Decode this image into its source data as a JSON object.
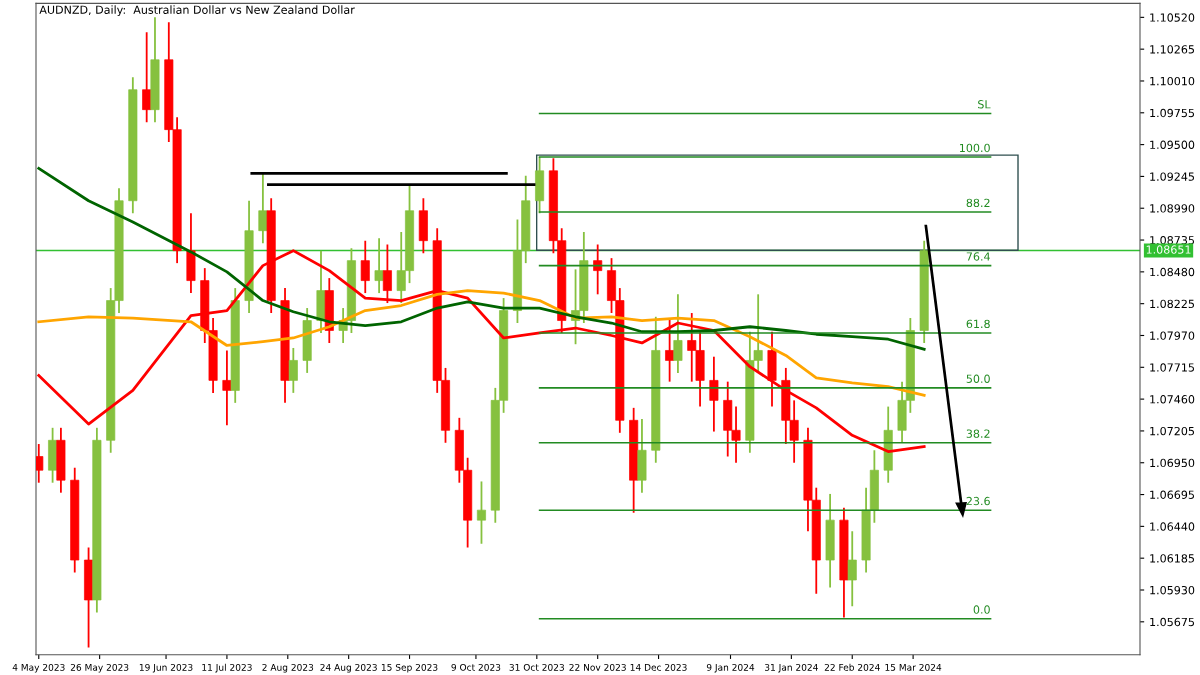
{
  "chart_data": {
    "type": "candlestick",
    "title": "AUDNZD, Daily:  Australian Dollar vs New Zealand Dollar",
    "x": [
      "2023-05-04",
      "2023-05-09",
      "2023-05-12",
      "2023-05-17",
      "2023-05-22",
      "2023-05-25",
      "2023-05-30",
      "2023-06-02",
      "2023-06-07",
      "2023-06-12",
      "2023-06-15",
      "2023-06-20",
      "2023-06-23",
      "2023-06-28",
      "2023-07-03",
      "2023-07-06",
      "2023-07-11",
      "2023-07-14",
      "2023-07-19",
      "2023-07-24",
      "2023-07-27",
      "2023-08-01",
      "2023-08-04",
      "2023-08-09",
      "2023-08-14",
      "2023-08-17",
      "2023-08-22",
      "2023-08-25",
      "2023-08-30",
      "2023-09-04",
      "2023-09-07",
      "2023-09-12",
      "2023-09-15",
      "2023-09-20",
      "2023-09-25",
      "2023-09-28",
      "2023-10-03",
      "2023-10-06",
      "2023-10-11",
      "2023-10-16",
      "2023-10-19",
      "2023-10-24",
      "2023-10-27",
      "2023-11-01",
      "2023-11-06",
      "2023-11-09",
      "2023-11-14",
      "2023-11-17",
      "2023-11-22",
      "2023-11-27",
      "2023-11-30",
      "2023-12-05",
      "2023-12-08",
      "2023-12-13",
      "2023-12-18",
      "2023-12-21",
      "2023-12-26",
      "2023-12-29",
      "2024-01-03",
      "2024-01-08",
      "2024-01-11",
      "2024-01-16",
      "2024-01-19",
      "2024-01-24",
      "2024-01-29",
      "2024-02-01",
      "2024-02-06",
      "2024-02-09",
      "2024-02-14",
      "2024-02-19",
      "2024-02-22",
      "2024-02-27",
      "2024-03-01",
      "2024-03-06",
      "2024-03-11",
      "2024-03-14",
      "2024-03-19"
    ],
    "ohlc": [
      [
        1.07,
        1.071,
        1.0679,
        1.0689
      ],
      [
        1.0689,
        1.0723,
        1.0679,
        1.0713
      ],
      [
        1.0713,
        1.0723,
        1.0671,
        1.0681
      ],
      [
        1.0681,
        1.0691,
        1.0607,
        1.0617
      ],
      [
        1.0617,
        1.0627,
        1.0547,
        1.0585
      ],
      [
        1.0585,
        1.0723,
        1.0575,
        1.0713
      ],
      [
        1.0713,
        1.0835,
        1.0703,
        1.0825
      ],
      [
        1.0825,
        1.0915,
        1.0815,
        1.0905
      ],
      [
        1.0905,
        1.1004,
        1.0895,
        1.0994
      ],
      [
        1.0994,
        1.104,
        1.0968,
        1.0978
      ],
      [
        1.0978,
        1.1052,
        1.0968,
        1.1018
      ],
      [
        1.1018,
        1.1048,
        1.0952,
        1.0962
      ],
      [
        1.0962,
        1.0972,
        1.0855,
        1.0865
      ],
      [
        1.0865,
        1.0895,
        1.0831,
        1.0841
      ],
      [
        1.0841,
        1.0851,
        1.0791,
        1.0801
      ],
      [
        1.0801,
        1.0811,
        1.0751,
        1.0761
      ],
      [
        1.0761,
        1.0785,
        1.0725,
        1.0753
      ],
      [
        1.0753,
        1.0835,
        1.0743,
        1.0825
      ],
      [
        1.0825,
        1.0905,
        1.0815,
        1.0881
      ],
      [
        1.0881,
        1.0927,
        1.0871,
        1.0897
      ],
      [
        1.0897,
        1.0907,
        1.0815,
        1.0825
      ],
      [
        1.0825,
        1.0835,
        1.0743,
        1.0761
      ],
      [
        1.0761,
        1.0787,
        1.0751,
        1.0777
      ],
      [
        1.0777,
        1.0819,
        1.0767,
        1.0809
      ],
      [
        1.0809,
        1.0865,
        1.0799,
        1.0833
      ],
      [
        1.0833,
        1.0843,
        1.0791,
        1.0801
      ],
      [
        1.0801,
        1.0819,
        1.0791,
        1.0809
      ],
      [
        1.0809,
        1.0867,
        1.0799,
        1.0857
      ],
      [
        1.0857,
        1.0873,
        1.0831,
        1.0841
      ],
      [
        1.0841,
        1.0875,
        1.0831,
        1.0849
      ],
      [
        1.0849,
        1.087,
        1.0823,
        1.0833
      ],
      [
        1.0833,
        1.088,
        1.0823,
        1.0849
      ],
      [
        1.0849,
        1.0917,
        1.0839,
        1.0897
      ],
      [
        1.0897,
        1.0907,
        1.0863,
        1.0873
      ],
      [
        1.0873,
        1.0883,
        1.0751,
        1.0761
      ],
      [
        1.0761,
        1.0771,
        1.0711,
        1.0721
      ],
      [
        1.0721,
        1.0731,
        1.0679,
        1.0689
      ],
      [
        1.0689,
        1.0699,
        1.0627,
        1.0649
      ],
      [
        1.0649,
        1.068,
        1.063,
        1.0657
      ],
      [
        1.0657,
        1.0755,
        1.0647,
        1.0745
      ],
      [
        1.0745,
        1.0827,
        1.0735,
        1.0817
      ],
      [
        1.0817,
        1.089,
        1.0807,
        1.0865
      ],
      [
        1.0865,
        1.0925,
        1.0855,
        1.0905
      ],
      [
        1.0905,
        1.094,
        1.0895,
        1.0929
      ],
      [
        1.0929,
        1.0939,
        1.0863,
        1.0873
      ],
      [
        1.0873,
        1.0883,
        1.0799,
        1.0809
      ],
      [
        1.0809,
        1.085,
        1.079,
        1.0817
      ],
      [
        1.0817,
        1.088,
        1.0807,
        1.0857
      ],
      [
        1.0857,
        1.087,
        1.083,
        1.0849
      ],
      [
        1.0849,
        1.0859,
        1.0815,
        1.0825
      ],
      [
        1.0825,
        1.0835,
        1.0719,
        1.0729
      ],
      [
        1.0729,
        1.0739,
        1.0655,
        1.0681
      ],
      [
        1.0681,
        1.073,
        1.0671,
        1.0705
      ],
      [
        1.0705,
        1.0812,
        1.0695,
        1.0785
      ],
      [
        1.0785,
        1.081,
        1.076,
        1.0777
      ],
      [
        1.0777,
        1.083,
        1.0767,
        1.0793
      ],
      [
        1.0793,
        1.0815,
        1.076,
        1.0785
      ],
      [
        1.0785,
        1.08,
        1.074,
        1.0761
      ],
      [
        1.0761,
        1.078,
        1.072,
        1.0745
      ],
      [
        1.0745,
        1.076,
        1.07,
        1.0721
      ],
      [
        1.0721,
        1.074,
        1.0695,
        1.0713
      ],
      [
        1.0713,
        1.08,
        1.0703,
        1.0777
      ],
      [
        1.0777,
        1.083,
        1.0767,
        1.0785
      ],
      [
        1.0785,
        1.08,
        1.074,
        1.0761
      ],
      [
        1.0761,
        1.0771,
        1.071,
        1.0729
      ],
      [
        1.0729,
        1.0745,
        1.0695,
        1.0713
      ],
      [
        1.0713,
        1.0723,
        1.064,
        1.0665
      ],
      [
        1.0665,
        1.0675,
        1.059,
        1.0617
      ],
      [
        1.0617,
        1.067,
        1.0595,
        1.0649
      ],
      [
        1.0649,
        1.0659,
        1.0571,
        1.0601
      ],
      [
        1.0601,
        1.064,
        1.058,
        1.0617
      ],
      [
        1.0617,
        1.0675,
        1.0607,
        1.0657
      ],
      [
        1.0657,
        1.0705,
        1.0647,
        1.0689
      ],
      [
        1.0689,
        1.074,
        1.0679,
        1.0721
      ],
      [
        1.0721,
        1.076,
        1.0711,
        1.0745
      ],
      [
        1.0745,
        1.0811,
        1.0735,
        1.0801
      ],
      [
        1.0801,
        1.0873,
        1.0791,
        1.0865
      ]
    ],
    "series": [
      {
        "type": "line",
        "color": "#ff0000",
        "x": [
          "2023-05-04",
          "2023-05-22",
          "2023-06-07",
          "2023-06-28",
          "2023-07-11",
          "2023-07-24",
          "2023-08-04",
          "2023-08-17",
          "2023-08-30",
          "2023-09-12",
          "2023-09-25",
          "2023-10-06",
          "2023-10-19",
          "2023-11-01",
          "2023-11-14",
          "2023-11-27",
          "2023-12-08",
          "2023-12-21",
          "2024-01-03",
          "2024-01-16",
          "2024-01-29",
          "2024-02-09",
          "2024-02-22",
          "2024-03-06",
          "2024-03-19"
        ],
        "values": [
          1.0765,
          1.0726,
          1.0753,
          1.0813,
          1.0817,
          1.0853,
          1.0865,
          1.0849,
          1.0827,
          1.0825,
          1.0833,
          1.0827,
          1.0795,
          1.0799,
          1.0803,
          1.0797,
          1.0791,
          1.0807,
          1.0801,
          1.0772,
          1.0753,
          1.0739,
          1.0717,
          1.0704,
          1.0708
        ]
      },
      {
        "type": "line",
        "color": "#ffa500",
        "x": [
          "2023-05-04",
          "2023-05-22",
          "2023-06-07",
          "2023-06-28",
          "2023-07-11",
          "2023-07-24",
          "2023-08-04",
          "2023-08-17",
          "2023-08-30",
          "2023-09-12",
          "2023-09-25",
          "2023-10-06",
          "2023-10-19",
          "2023-11-01",
          "2023-11-14",
          "2023-11-27",
          "2023-12-08",
          "2023-12-21",
          "2024-01-03",
          "2024-01-16",
          "2024-01-29",
          "2024-02-09",
          "2024-02-22",
          "2024-03-06",
          "2024-03-19"
        ],
        "values": [
          1.0808,
          1.0812,
          1.0811,
          1.0808,
          1.0789,
          1.0792,
          1.0795,
          1.0804,
          1.0817,
          1.0821,
          1.083,
          1.0833,
          1.0831,
          1.0825,
          1.0811,
          1.0812,
          1.0809,
          1.0811,
          1.0809,
          1.0796,
          1.0781,
          1.0763,
          1.0759,
          1.0756,
          1.0749
        ]
      },
      {
        "type": "line",
        "color": "#006400",
        "x": [
          "2023-05-04",
          "2023-05-22",
          "2023-06-07",
          "2023-06-28",
          "2023-07-11",
          "2023-07-24",
          "2023-08-04",
          "2023-08-17",
          "2023-08-30",
          "2023-09-12",
          "2023-09-25",
          "2023-10-06",
          "2023-10-19",
          "2023-11-01",
          "2023-11-14",
          "2023-11-27",
          "2023-12-08",
          "2023-12-21",
          "2024-01-03",
          "2024-01-16",
          "2024-01-29",
          "2024-02-09",
          "2024-02-22",
          "2024-03-06",
          "2024-03-19"
        ],
        "values": [
          1.0931,
          1.0905,
          1.0888,
          1.0864,
          1.0848,
          1.0825,
          1.0816,
          1.0808,
          1.0805,
          1.0808,
          1.0819,
          1.0824,
          1.0819,
          1.0819,
          1.0812,
          1.0807,
          1.08,
          1.08,
          1.0801,
          1.0804,
          1.0801,
          1.0798,
          1.0796,
          1.0794,
          1.0786
        ]
      },
      {
        "type": "line",
        "color": "#000000",
        "x": [
          "2023-07-20",
          "2023-10-20"
        ],
        "values": [
          1.0927,
          1.0927
        ]
      },
      {
        "type": "line",
        "color": "#000000",
        "x": [
          "2023-07-26",
          "2023-10-30"
        ],
        "values": [
          1.0918,
          1.0918
        ]
      },
      {
        "type": "line",
        "color": "#228b22",
        "x": [
          "2023-11-01",
          "2024-04-12"
        ],
        "values": [
          1.0975,
          1.0975
        ]
      },
      {
        "type": "line",
        "color": "#228b22",
        "x": [
          "2023-11-01",
          "2024-04-12"
        ],
        "values": [
          1.094,
          1.094
        ]
      },
      {
        "type": "line",
        "color": "#228b22",
        "x": [
          "2023-11-01",
          "2024-04-12"
        ],
        "values": [
          1.0896,
          1.0896
        ]
      },
      {
        "type": "line",
        "color": "#228b22",
        "x": [
          "2023-11-01",
          "2024-04-12"
        ],
        "values": [
          1.0853,
          1.0853
        ]
      },
      {
        "type": "line",
        "color": "#228b22",
        "x": [
          "2023-11-01",
          "2024-04-12"
        ],
        "values": [
          1.0799,
          1.0799
        ]
      },
      {
        "type": "line",
        "color": "#228b22",
        "x": [
          "2023-11-01",
          "2024-04-12"
        ],
        "values": [
          1.0755,
          1.0755
        ]
      },
      {
        "type": "line",
        "color": "#228b22",
        "x": [
          "2023-11-01",
          "2024-04-12"
        ],
        "values": [
          1.0711,
          1.0711
        ]
      },
      {
        "type": "line",
        "color": "#228b22",
        "x": [
          "2023-11-01",
          "2024-04-12"
        ],
        "values": [
          1.0657,
          1.0657
        ]
      },
      {
        "type": "line",
        "color": "#228b22",
        "x": [
          "2023-11-01",
          "2024-04-12"
        ],
        "values": [
          1.057,
          1.057
        ]
      }
    ],
    "annotations": [
      {
        "text": "SL",
        "x": "2024-04-12",
        "y": 1.0975
      },
      {
        "text": "100.0",
        "x": "2024-04-12",
        "y": 1.094
      },
      {
        "text": "88.2",
        "x": "2024-04-12",
        "y": 1.0896
      },
      {
        "text": "76.4",
        "x": "2024-04-12",
        "y": 1.0853
      },
      {
        "text": "61.8",
        "x": "2024-04-12",
        "y": 1.0799
      },
      {
        "text": "50.0",
        "x": "2024-04-12",
        "y": 1.0755
      },
      {
        "text": "38.2",
        "x": "2024-04-12",
        "y": 1.0711
      },
      {
        "text": "23.6",
        "x": "2024-04-12",
        "y": 1.0657
      },
      {
        "text": "0.0",
        "x": "2024-04-12",
        "y": 1.057
      }
    ],
    "ref_lines": [
      {
        "axis": "y",
        "value": 1.08651,
        "label": "1.08651",
        "color": "#32c032"
      }
    ],
    "xlim": [
      "2023-05-03",
      "2024-06-05"
    ],
    "xticks": [
      {
        "value": "2023-05-04",
        "label": "4 May 2023"
      },
      {
        "value": "2023-05-26",
        "label": "26 May 2023"
      },
      {
        "value": "2023-06-19",
        "label": "19 Jun 2023"
      },
      {
        "value": "2023-07-11",
        "label": "11 Jul 2023"
      },
      {
        "value": "2023-08-02",
        "label": "2 Aug 2023"
      },
      {
        "value": "2023-08-24",
        "label": "24 Aug 2023"
      },
      {
        "value": "2023-09-15",
        "label": "15 Sep 2023"
      },
      {
        "value": "2023-10-09",
        "label": "9 Oct 2023"
      },
      {
        "value": "2023-10-31",
        "label": "31 Oct 2023"
      },
      {
        "value": "2023-11-22",
        "label": "22 Nov 2023"
      },
      {
        "value": "2023-12-14",
        "label": "14 Dec 2023"
      },
      {
        "value": "2024-01-09",
        "label": "9 Jan 2024"
      },
      {
        "value": "2024-01-31",
        "label": "31 Jan 2024"
      },
      {
        "value": "2024-02-22",
        "label": "22 Feb 2024"
      },
      {
        "value": "2024-03-15",
        "label": "15 Mar 2024"
      }
    ],
    "ylim": [
      1.05411,
      1.10632
    ],
    "yticks": [
      {
        "value": 1.05675,
        "label": "1.05675"
      },
      {
        "value": 1.0593,
        "label": "1.05930"
      },
      {
        "value": 1.06185,
        "label": "1.06185"
      },
      {
        "value": 1.0644,
        "label": "1.06440"
      },
      {
        "value": 1.06695,
        "label": "1.06695"
      },
      {
        "value": 1.0695,
        "label": "1.06950"
      },
      {
        "value": 1.07205,
        "label": "1.07205"
      },
      {
        "value": 1.0746,
        "label": "1.07460"
      },
      {
        "value": 1.07715,
        "label": "1.07715"
      },
      {
        "value": 1.0797,
        "label": "1.07970"
      },
      {
        "value": 1.08225,
        "label": "1.08225"
      },
      {
        "value": 1.0848,
        "label": "1.08480"
      },
      {
        "value": 1.08735,
        "label": "1.08735"
      },
      {
        "value": 1.0899,
        "label": "1.08990"
      },
      {
        "value": 1.09245,
        "label": "1.09245"
      },
      {
        "value": 1.095,
        "label": "1.09500"
      },
      {
        "value": 1.09755,
        "label": "1.09755"
      },
      {
        "value": 1.1001,
        "label": "1.10010"
      },
      {
        "value": 1.10265,
        "label": "1.10265"
      },
      {
        "value": 1.1052,
        "label": "1.10520"
      }
    ],
    "grid": false,
    "legend": false
  }
}
